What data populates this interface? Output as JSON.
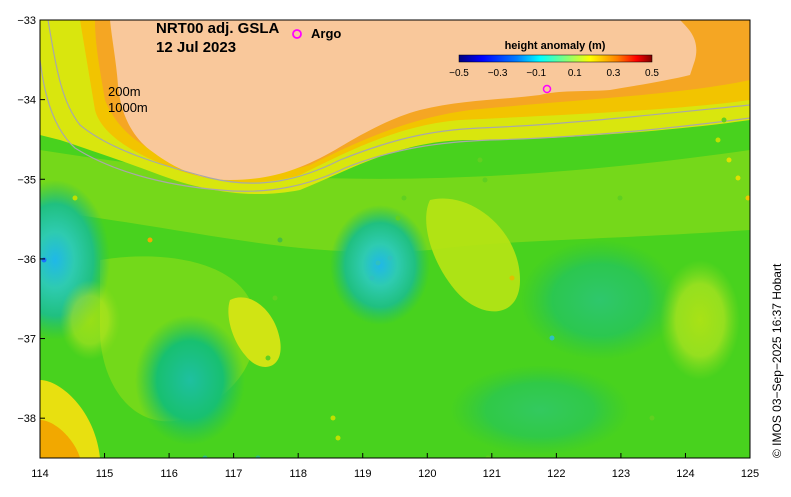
{
  "title": {
    "line1": "NRT00 adj. GSLA",
    "line2": "12 Jul 2023"
  },
  "argo_legend": {
    "symbol": "o",
    "label": "Argo",
    "color": "#ff00ff"
  },
  "contour_labels": {
    "shallow": "200m",
    "deep": "1000m"
  },
  "colorbar": {
    "title": "height anomaly (m)",
    "ticks": [
      "−0.5",
      "−0.3",
      "−0.1",
      "0.1",
      "0.3",
      "0.5"
    ],
    "colors": [
      "#00007f",
      "#0000ff",
      "#007fff",
      "#00ffff",
      "#7fff7f",
      "#ffff00",
      "#ff7f00",
      "#ff0000",
      "#7f0000"
    ]
  },
  "axes": {
    "x_ticks": [
      "114",
      "115",
      "116",
      "117",
      "118",
      "119",
      "120",
      "121",
      "122",
      "123",
      "124",
      "125"
    ],
    "y_ticks": [
      "−33",
      "−34",
      "−35",
      "−36",
      "−37",
      "−38"
    ],
    "x_range": [
      114,
      125
    ],
    "y_range": [
      -38.5,
      -33
    ]
  },
  "credit": "© IMOS 03−Sep−2025 16:37 Hobart",
  "colors": {
    "land": "#f9c89b",
    "coast_band_orange": "#f5a623",
    "coast_band_yellow": "#f2d500"
  }
}
